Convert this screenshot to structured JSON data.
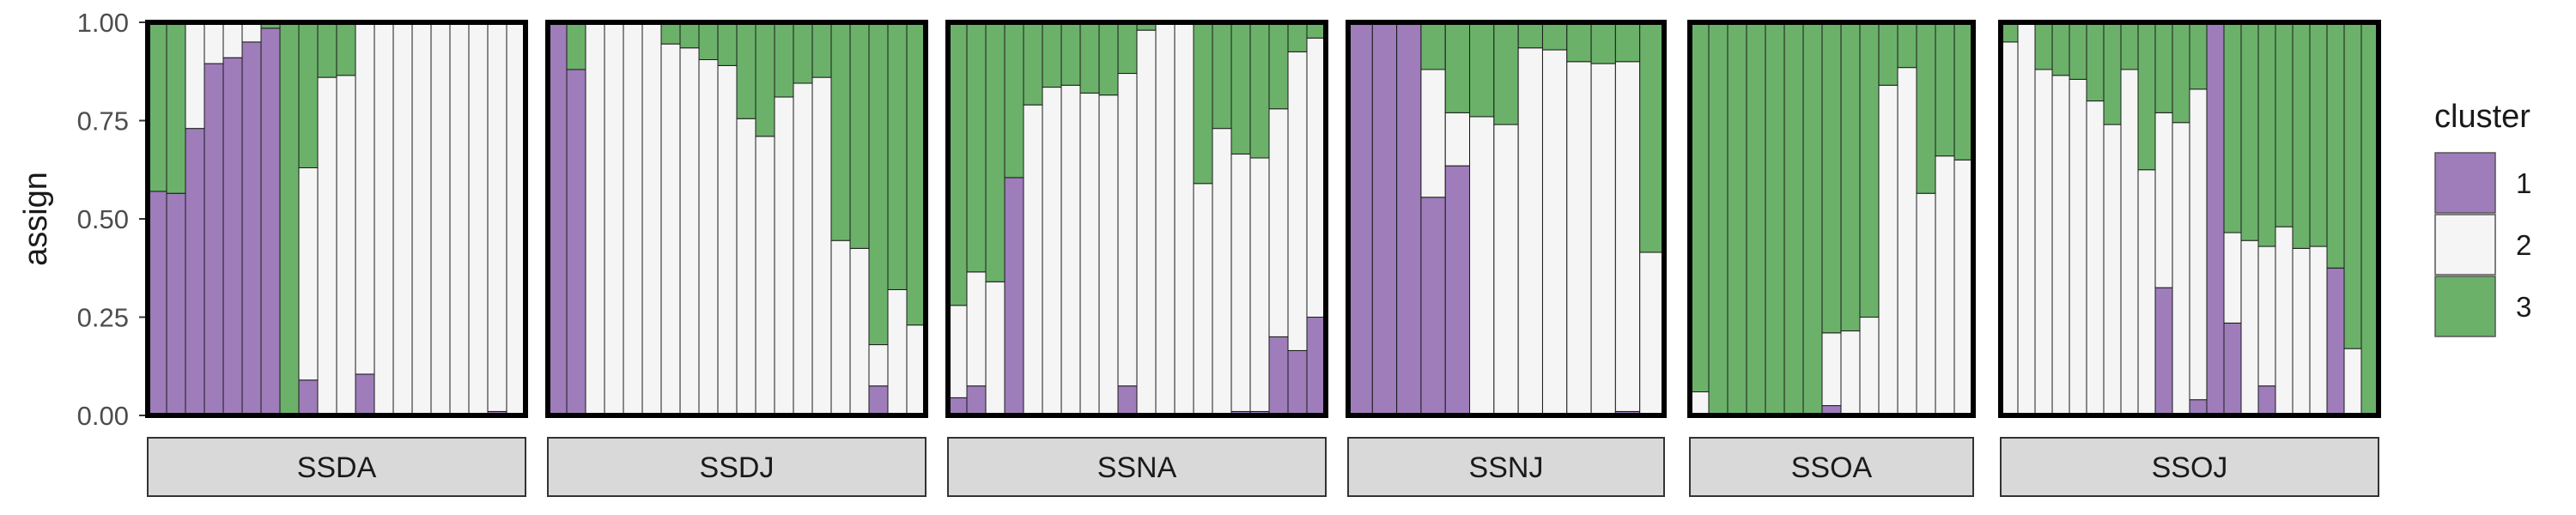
{
  "chart_data": {
    "type": "bar",
    "subtype": "stacked-proportion-facets",
    "ylabel": "assign",
    "ylim": [
      0,
      1
    ],
    "y_ticks": [
      "0.00",
      "0.25",
      "0.50",
      "0.75",
      "1.00"
    ],
    "y_tick_values": [
      0,
      0.25,
      0.5,
      0.75,
      1
    ],
    "grid": false,
    "legend": {
      "title": "cluster",
      "position": "right",
      "entries": [
        {
          "label": "1",
          "color": "#9E7DBA"
        },
        {
          "label": "2",
          "color": "#F5F5F5"
        },
        {
          "label": "3",
          "color": "#6BB16A"
        }
      ]
    },
    "series": [
      {
        "name": "1",
        "color": "#9E7DBA"
      },
      {
        "name": "2",
        "color": "#F5F5F5"
      },
      {
        "name": "3",
        "color": "#6BB16A"
      }
    ],
    "facets": [
      {
        "label": "SSDA",
        "bars": [
          [
            0.57,
            0.0,
            0.43
          ],
          [
            0.565,
            0.0,
            0.435
          ],
          [
            0.73,
            0.27,
            0.0
          ],
          [
            0.895,
            0.105,
            0.0
          ],
          [
            0.91,
            0.09,
            0.0
          ],
          [
            0.95,
            0.05,
            0.0
          ],
          [
            0.985,
            0.0,
            0.015
          ],
          [
            0.0,
            0.0,
            1.0
          ],
          [
            0.09,
            0.54,
            0.37
          ],
          [
            0.0,
            0.86,
            0.14
          ],
          [
            0.0,
            0.865,
            0.135
          ],
          [
            0.105,
            0.895,
            0.0
          ],
          [
            0.0,
            1.0,
            0.0
          ],
          [
            0.0,
            1.0,
            0.0
          ],
          [
            0.0,
            1.0,
            0.0
          ],
          [
            0.0,
            1.0,
            0.0
          ],
          [
            0.0,
            1.0,
            0.0
          ],
          [
            0.0,
            1.0,
            0.0
          ],
          [
            0.01,
            0.99,
            0.0
          ],
          [
            0.0,
            1.0,
            0.0
          ]
        ]
      },
      {
        "label": "SSDJ",
        "bars": [
          [
            1.0,
            0.0,
            0.0
          ],
          [
            0.88,
            0.0,
            0.12
          ],
          [
            0.0,
            1.0,
            0.0
          ],
          [
            0.0,
            1.0,
            0.0
          ],
          [
            0.0,
            1.0,
            0.0
          ],
          [
            0.0,
            1.0,
            0.0
          ],
          [
            0.0,
            0.945,
            0.055
          ],
          [
            0.0,
            0.935,
            0.065
          ],
          [
            0.0,
            0.905,
            0.095
          ],
          [
            0.0,
            0.89,
            0.11
          ],
          [
            0.0,
            0.755,
            0.245
          ],
          [
            0.0,
            0.71,
            0.29
          ],
          [
            0.0,
            0.81,
            0.19
          ],
          [
            0.0,
            0.845,
            0.155
          ],
          [
            0.0,
            0.86,
            0.14
          ],
          [
            0.0,
            0.445,
            0.555
          ],
          [
            0.0,
            0.425,
            0.575
          ],
          [
            0.075,
            0.105,
            0.82
          ],
          [
            0.0,
            0.32,
            0.68
          ],
          [
            0.0,
            0.23,
            0.77
          ]
        ]
      },
      {
        "label": "SSNA",
        "bars": [
          [
            0.045,
            0.235,
            0.72
          ],
          [
            0.075,
            0.29,
            0.635
          ],
          [
            0.0,
            0.34,
            0.66
          ],
          [
            0.605,
            0.0,
            0.395
          ],
          [
            0.0,
            0.79,
            0.21
          ],
          [
            0.0,
            0.835,
            0.165
          ],
          [
            0.0,
            0.84,
            0.16
          ],
          [
            0.0,
            0.82,
            0.18
          ],
          [
            0.0,
            0.815,
            0.185
          ],
          [
            0.075,
            0.795,
            0.13
          ],
          [
            0.0,
            0.98,
            0.02
          ],
          [
            0.0,
            1.0,
            0.0
          ],
          [
            0.0,
            1.0,
            0.0
          ],
          [
            0.0,
            0.59,
            0.41
          ],
          [
            0.0,
            0.73,
            0.27
          ],
          [
            0.01,
            0.655,
            0.335
          ],
          [
            0.01,
            0.645,
            0.345
          ],
          [
            0.2,
            0.58,
            0.22
          ],
          [
            0.165,
            0.76,
            0.075
          ],
          [
            0.25,
            0.71,
            0.04
          ]
        ]
      },
      {
        "label": "SSNJ",
        "bars": [
          [
            1.0,
            0.0,
            0.0
          ],
          [
            1.0,
            0.0,
            0.0
          ],
          [
            1.0,
            0.0,
            0.0
          ],
          [
            0.555,
            0.325,
            0.12
          ],
          [
            0.635,
            0.135,
            0.23
          ],
          [
            0.0,
            0.76,
            0.24
          ],
          [
            0.0,
            0.74,
            0.26
          ],
          [
            0.0,
            0.935,
            0.065
          ],
          [
            0.0,
            0.93,
            0.07
          ],
          [
            0.0,
            0.9,
            0.1
          ],
          [
            0.0,
            0.895,
            0.105
          ],
          [
            0.01,
            0.89,
            0.1
          ],
          [
            0.0,
            0.415,
            0.585
          ]
        ]
      },
      {
        "label": "SSOA",
        "bars": [
          [
            0.0,
            0.06,
            0.94
          ],
          [
            0.0,
            0.0,
            1.0
          ],
          [
            0.0,
            0.0,
            1.0
          ],
          [
            0.0,
            0.0,
            1.0
          ],
          [
            0.0,
            0.0,
            1.0
          ],
          [
            0.0,
            0.0,
            1.0
          ],
          [
            0.0,
            0.0,
            1.0
          ],
          [
            0.025,
            0.185,
            0.79
          ],
          [
            0.0,
            0.215,
            0.785
          ],
          [
            0.0,
            0.25,
            0.75
          ],
          [
            0.0,
            0.84,
            0.16
          ],
          [
            0.0,
            0.885,
            0.115
          ],
          [
            0.0,
            0.565,
            0.435
          ],
          [
            0.0,
            0.66,
            0.34
          ],
          [
            0.0,
            0.65,
            0.35
          ]
        ]
      },
      {
        "label": "SSOJ",
        "bars": [
          [
            0.0,
            0.95,
            0.05
          ],
          [
            0.0,
            1.0,
            0.0
          ],
          [
            0.0,
            0.88,
            0.12
          ],
          [
            0.0,
            0.865,
            0.135
          ],
          [
            0.0,
            0.855,
            0.145
          ],
          [
            0.0,
            0.8,
            0.2
          ],
          [
            0.0,
            0.74,
            0.26
          ],
          [
            0.0,
            0.88,
            0.12
          ],
          [
            0.0,
            0.625,
            0.375
          ],
          [
            0.325,
            0.445,
            0.23
          ],
          [
            0.0,
            0.745,
            0.255
          ],
          [
            0.04,
            0.79,
            0.17
          ],
          [
            1.0,
            0.0,
            0.0
          ],
          [
            0.235,
            0.23,
            0.535
          ],
          [
            0.0,
            0.445,
            0.555
          ],
          [
            0.075,
            0.355,
            0.57
          ],
          [
            0.0,
            0.48,
            0.52
          ],
          [
            0.0,
            0.425,
            0.575
          ],
          [
            0.0,
            0.43,
            0.57
          ],
          [
            0.375,
            0.0,
            0.625
          ],
          [
            0.0,
            0.17,
            0.83
          ],
          [
            0.0,
            0.0,
            1.0
          ]
        ]
      }
    ]
  }
}
